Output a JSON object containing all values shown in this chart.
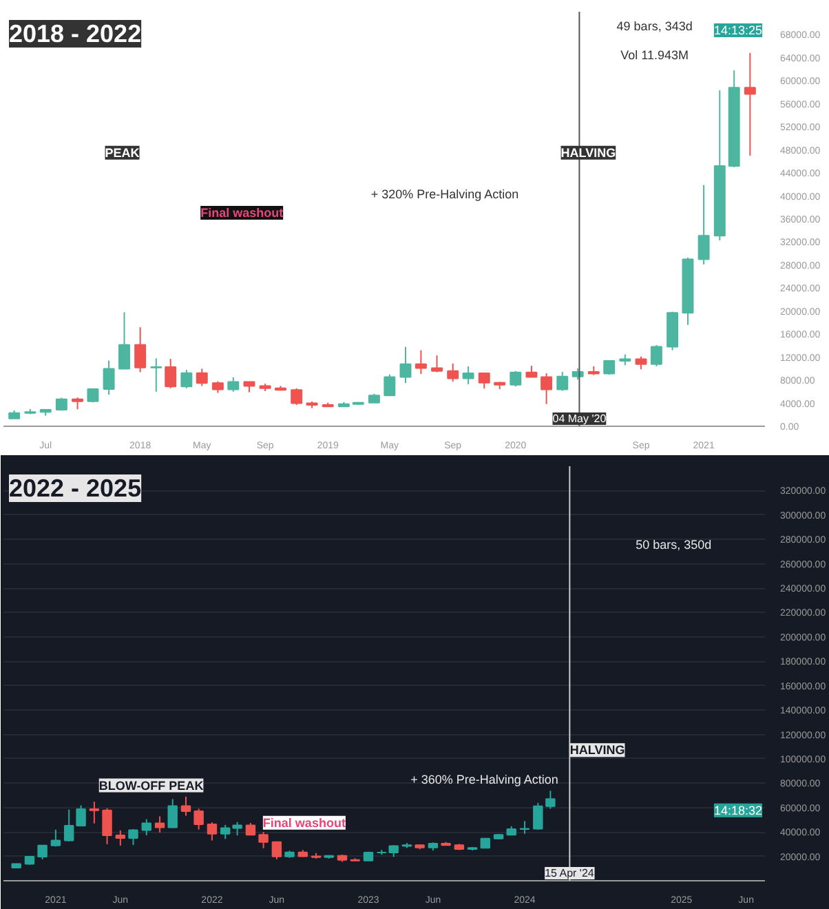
{
  "chart_data": [
    {
      "type": "candlestick",
      "title": "2018 - 2022",
      "x": [
        "2017-05-01",
        "2017-06-01",
        "2017-07-01",
        "2017-08-01",
        "2017-09-01",
        "2017-10-01",
        "2017-11-01",
        "2017-12-01",
        "2018-01-01",
        "2018-02-01",
        "2018-03-01",
        "2018-04-01",
        "2018-05-01",
        "2018-06-01",
        "2018-07-01",
        "2018-08-01",
        "2018-09-01",
        "2018-10-01",
        "2018-11-01",
        "2018-12-01",
        "2019-01-01",
        "2019-02-01",
        "2019-03-01",
        "2019-04-01",
        "2019-05-01",
        "2019-06-01",
        "2019-07-01",
        "2019-08-01",
        "2019-09-01",
        "2019-10-01",
        "2019-11-01",
        "2019-12-01",
        "2020-01-01",
        "2020-02-01",
        "2020-03-01",
        "2020-04-01",
        "2020-05-01",
        "2020-06-01",
        "2020-07-01",
        "2020-08-01",
        "2020-09-01",
        "2020-10-01",
        "2020-11-01",
        "2020-12-01",
        "2021-01-01",
        "2021-02-01",
        "2021-03-01",
        "2021-04-01"
      ],
      "ohlc": [
        [
          1350,
          2760,
          1350,
          2300
        ],
        [
          2300,
          3000,
          2100,
          2480
        ],
        [
          2480,
          2950,
          1830,
          2875
        ],
        [
          2875,
          4950,
          2700,
          4700
        ],
        [
          4700,
          5000,
          2950,
          4340
        ],
        [
          4340,
          6450,
          4150,
          6450
        ],
        [
          6450,
          11400,
          5500,
          10000
        ],
        [
          10000,
          19800,
          9900,
          14150
        ],
        [
          14150,
          17200,
          9400,
          10200
        ],
        [
          10200,
          11800,
          6000,
          10300
        ],
        [
          10300,
          11700,
          6600,
          6900
        ],
        [
          6900,
          9800,
          6600,
          9250
        ],
        [
          9250,
          10000,
          7000,
          7500
        ],
        [
          7500,
          7800,
          5800,
          6400
        ],
        [
          6400,
          8500,
          6000,
          7700
        ],
        [
          7700,
          7750,
          5900,
          7000
        ],
        [
          7000,
          7400,
          6100,
          6600
        ],
        [
          6600,
          7000,
          6200,
          6300
        ],
        [
          6300,
          6600,
          3700,
          4000
        ],
        [
          4000,
          4300,
          3150,
          3700
        ],
        [
          3700,
          4100,
          3400,
          3450
        ],
        [
          3450,
          4200,
          3350,
          3850
        ],
        [
          3850,
          4100,
          3700,
          4100
        ],
        [
          4100,
          5650,
          4100,
          5350
        ],
        [
          5350,
          9000,
          5300,
          8550
        ],
        [
          8550,
          13800,
          7500,
          10800
        ],
        [
          10800,
          13200,
          9100,
          10100
        ],
        [
          10100,
          12300,
          9400,
          9600
        ],
        [
          9600,
          10900,
          7750,
          8300
        ],
        [
          8300,
          10400,
          7300,
          9200
        ],
        [
          9200,
          9300,
          6550,
          7550
        ],
        [
          7550,
          7700,
          6450,
          7200
        ],
        [
          7200,
          9600,
          6900,
          9350
        ],
        [
          9350,
          10500,
          8500,
          8550
        ],
        [
          8550,
          9200,
          3850,
          6400
        ],
        [
          6400,
          9450,
          6150,
          8650
        ],
        [
          8650,
          10050,
          8100,
          9450
        ],
        [
          9450,
          10400,
          8900,
          9150
        ],
        [
          9150,
          11450,
          8950,
          11350
        ],
        [
          11350,
          12470,
          10600,
          11650
        ],
        [
          11650,
          12100,
          9900,
          10800
        ],
        [
          10800,
          14100,
          10400,
          13800
        ],
        [
          13800,
          19900,
          13200,
          19700
        ],
        [
          19700,
          29300,
          17600,
          29000
        ],
        [
          29000,
          41900,
          28100,
          33100
        ],
        [
          33100,
          58350,
          32300,
          45200
        ],
        [
          45200,
          61800,
          45000,
          58800
        ],
        [
          58800,
          64850,
          47000,
          57700
        ]
      ],
      "colors": [
        "#4db6a0",
        "#4db6a0",
        "#4db6a0",
        "#4db6a0",
        "#ef5350",
        "#4db6a0",
        "#4db6a0",
        "#4db6a0",
        "#ef5350",
        "#4db6a0",
        "#ef5350",
        "#4db6a0",
        "#ef5350",
        "#ef5350",
        "#4db6a0",
        "#ef5350",
        "#ef5350",
        "#ef5350",
        "#ef5350",
        "#ef5350",
        "#ef5350",
        "#4db6a0",
        "#4db6a0",
        "#4db6a0",
        "#4db6a0",
        "#4db6a0",
        "#ef5350",
        "#ef5350",
        "#ef5350",
        "#4db6a0",
        "#ef5350",
        "#ef5350",
        "#4db6a0",
        "#ef5350",
        "#ef5350",
        "#4db6a0",
        "#4db6a0",
        "#ef5350",
        "#4db6a0",
        "#4db6a0",
        "#ef5350",
        "#4db6a0",
        "#4db6a0",
        "#4db6a0",
        "#4db6a0",
        "#4db6a0",
        "#4db6a0",
        "#ef5350"
      ],
      "xlim": [
        "2017-04-10",
        "2021-04-30"
      ],
      "xticks": [
        {
          "value": "2017-07-01",
          "label": "Jul"
        },
        {
          "value": "2018-01-01",
          "label": "2018"
        },
        {
          "value": "2018-05-01",
          "label": "May"
        },
        {
          "value": "2018-09-01",
          "label": "Sep"
        },
        {
          "value": "2019-01-01",
          "label": "2019"
        },
        {
          "value": "2019-05-01",
          "label": "May"
        },
        {
          "value": "2019-09-01",
          "label": "Sep"
        },
        {
          "value": "2020-01-01",
          "label": "2020"
        },
        {
          "value": "2020-09-01",
          "label": "Sep"
        },
        {
          "value": "2021-01-01",
          "label": "2021"
        }
      ],
      "ylim": [
        0,
        72000
      ],
      "yticks": [
        {
          "value": 0,
          "label": "0.00"
        },
        {
          "value": 4000,
          "label": "4000.00"
        },
        {
          "value": 8000,
          "label": "8000.00"
        },
        {
          "value": 12000,
          "label": "12000.00"
        },
        {
          "value": 16000,
          "label": "16000.00"
        },
        {
          "value": 20000,
          "label": "20000.00"
        },
        {
          "value": 24000,
          "label": "24000.00"
        },
        {
          "value": 28000,
          "label": "28000.00"
        },
        {
          "value": 32000,
          "label": "32000.00"
        },
        {
          "value": 36000,
          "label": "36000.00"
        },
        {
          "value": 40000,
          "label": "40000.00"
        },
        {
          "value": 44000,
          "label": "44000.00"
        },
        {
          "value": 48000,
          "label": "48000.00"
        },
        {
          "value": 52000,
          "label": "52000.00"
        },
        {
          "value": 56000,
          "label": "56000.00"
        },
        {
          "value": 60000,
          "label": "60000.00"
        },
        {
          "value": 64000,
          "label": "64000.00"
        },
        {
          "value": 68000,
          "label": "68000.00"
        }
      ],
      "ref_lines": [
        {
          "axis": "x",
          "value": "2020-05-04",
          "label": "04 May '20"
        }
      ],
      "annotations": [
        "PEAK",
        "Final washout",
        "+ 320% Pre-Halving Action",
        "HALVING",
        "49 bars, 343d",
        "Vol 11.943M",
        "14:13:25"
      ],
      "grid": false
    },
    {
      "type": "candlestick",
      "title": "2022 - 2025",
      "x": [
        "2020-10-01",
        "2020-11-01",
        "2020-12-01",
        "2021-01-01",
        "2021-02-01",
        "2021-03-01",
        "2021-04-01",
        "2021-05-01",
        "2021-06-01",
        "2021-07-01",
        "2021-08-01",
        "2021-09-01",
        "2021-10-01",
        "2021-11-01",
        "2021-12-01",
        "2022-01-01",
        "2022-02-01",
        "2022-03-01",
        "2022-04-01",
        "2022-05-01",
        "2022-06-01",
        "2022-07-01",
        "2022-08-01",
        "2022-09-01",
        "2022-10-01",
        "2022-11-01",
        "2022-12-01",
        "2023-01-01",
        "2023-02-01",
        "2023-03-01",
        "2023-04-01",
        "2023-05-01",
        "2023-06-01",
        "2023-07-01",
        "2023-08-01",
        "2023-09-01",
        "2023-10-01",
        "2023-11-01",
        "2023-12-01",
        "2024-01-01",
        "2024-02-01",
        "2024-03-01"
      ],
      "ohlc": [
        [
          10800,
          14100,
          10400,
          13800
        ],
        [
          13800,
          19900,
          13200,
          19700
        ],
        [
          19700,
          29300,
          17600,
          29000
        ],
        [
          29000,
          41900,
          28100,
          33100
        ],
        [
          33100,
          58350,
          32300,
          45200
        ],
        [
          45200,
          61800,
          45000,
          58800
        ],
        [
          58800,
          64850,
          47000,
          57700
        ],
        [
          57700,
          59500,
          30000,
          37300
        ],
        [
          37300,
          41300,
          28800,
          35000
        ],
        [
          35000,
          42400,
          29300,
          41500
        ],
        [
          41500,
          50500,
          37300,
          47100
        ],
        [
          47100,
          52900,
          39600,
          43800
        ],
        [
          43800,
          67000,
          43300,
          61300
        ],
        [
          61300,
          69000,
          53300,
          57000
        ],
        [
          57000,
          59100,
          42000,
          46300
        ],
        [
          46300,
          47900,
          33000,
          38500
        ],
        [
          38500,
          45800,
          34300,
          43200
        ],
        [
          43200,
          48200,
          37200,
          45500
        ],
        [
          45500,
          47400,
          37700,
          37700
        ],
        [
          37700,
          40000,
          26700,
          31800
        ],
        [
          31800,
          31900,
          17600,
          19900
        ],
        [
          19900,
          24600,
          18800,
          23300
        ],
        [
          23300,
          25200,
          19600,
          20000
        ],
        [
          20000,
          22700,
          18200,
          19400
        ],
        [
          19400,
          21000,
          18200,
          20500
        ],
        [
          20500,
          21450,
          15500,
          17150
        ],
        [
          17150,
          18400,
          16300,
          16550
        ],
        [
          16550,
          23900,
          16500,
          23100
        ],
        [
          23100,
          25250,
          21400,
          23150
        ],
        [
          23150,
          29200,
          19550,
          28500
        ],
        [
          28500,
          31000,
          26900,
          29250
        ],
        [
          29250,
          29800,
          25800,
          27200
        ],
        [
          27200,
          31400,
          24800,
          30500
        ],
        [
          30500,
          31800,
          28900,
          29250
        ],
        [
          29250,
          30200,
          25200,
          25950
        ],
        [
          25950,
          27500,
          24900,
          26950
        ],
        [
          26950,
          35000,
          26550,
          34650
        ],
        [
          34650,
          38400,
          34100,
          37700
        ],
        [
          37700,
          44700,
          37600,
          42300
        ],
        [
          42300,
          48950,
          38500,
          42600
        ],
        [
          42600,
          63900,
          41900,
          61200
        ],
        [
          61200,
          73800,
          59000,
          67000
        ]
      ],
      "colors": [
        "#26a69a",
        "#26a69a",
        "#26a69a",
        "#26a69a",
        "#26a69a",
        "#26a69a",
        "#ef5350",
        "#ef5350",
        "#ef5350",
        "#26a69a",
        "#26a69a",
        "#ef5350",
        "#26a69a",
        "#ef5350",
        "#ef5350",
        "#ef5350",
        "#26a69a",
        "#26a69a",
        "#ef5350",
        "#ef5350",
        "#ef5350",
        "#26a69a",
        "#ef5350",
        "#ef5350",
        "#26a69a",
        "#ef5350",
        "#ef5350",
        "#26a69a",
        "#26a69a",
        "#26a69a",
        "#26a69a",
        "#ef5350",
        "#26a69a",
        "#ef5350",
        "#ef5350",
        "#26a69a",
        "#26a69a",
        "#26a69a",
        "#26a69a",
        "#26a69a",
        "#26a69a",
        "#26a69a"
      ],
      "xlim": [
        "2020-09-01",
        "2025-07-15"
      ],
      "xticks": [
        {
          "value": "2021-01-01",
          "label": "2021"
        },
        {
          "value": "2021-06-01",
          "label": "Jun"
        },
        {
          "value": "2022-01-01",
          "label": "2022"
        },
        {
          "value": "2022-06-01",
          "label": "Jun"
        },
        {
          "value": "2023-01-01",
          "label": "2023"
        },
        {
          "value": "2023-06-01",
          "label": "Jun"
        },
        {
          "value": "2024-01-01",
          "label": "2024"
        },
        {
          "value": "2025-01-01",
          "label": "2025"
        },
        {
          "value": "2025-06-01",
          "label": "Jun"
        }
      ],
      "ylim": [
        0,
        340000
      ],
      "yticks": [
        {
          "value": 20000,
          "label": "20000.00"
        },
        {
          "value": 40000,
          "label": "40000.00"
        },
        {
          "value": 60000,
          "label": "60000.00"
        },
        {
          "value": 80000,
          "label": "80000.00"
        },
        {
          "value": 100000,
          "label": "100000.00"
        },
        {
          "value": 120000,
          "label": "120000.00"
        },
        {
          "value": 140000,
          "label": "140000.00"
        },
        {
          "value": 160000,
          "label": "160000.00"
        },
        {
          "value": 180000,
          "label": "180000.00"
        },
        {
          "value": 200000,
          "label": "200000.00"
        },
        {
          "value": 220000,
          "label": "220000.00"
        },
        {
          "value": 240000,
          "label": "240000.00"
        },
        {
          "value": 260000,
          "label": "260000.00"
        },
        {
          "value": 280000,
          "label": "280000.00"
        },
        {
          "value": 300000,
          "label": "300000.00"
        },
        {
          "value": 320000,
          "label": "320000.00"
        }
      ],
      "ref_lines": [
        {
          "axis": "x",
          "value": "2024-04-15",
          "label": "15 Apr '24"
        }
      ],
      "annotations": [
        "BLOW-OFF PEAK",
        "Final washout",
        "+ 360% Pre-Halving Action",
        "HALVING",
        "50 bars, 350d",
        "14:18:32"
      ],
      "grid": "y"
    }
  ]
}
